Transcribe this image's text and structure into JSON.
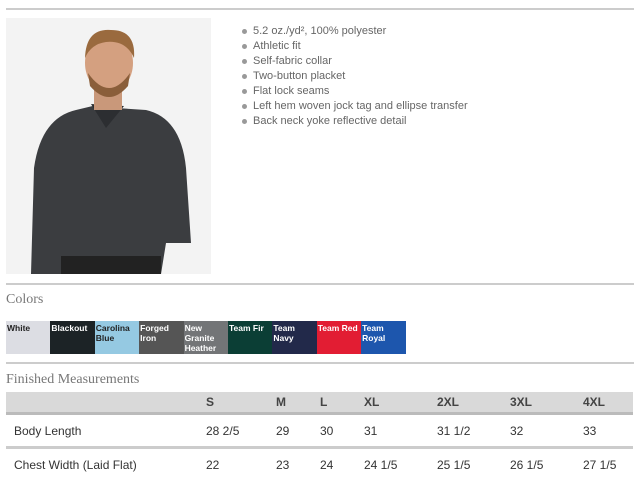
{
  "features": [
    "5.2 oz./yd², 100% polyester",
    "Athletic fit",
    "Self-fabric collar",
    "Two-button placket",
    "Flat lock seams",
    "Left hem woven jock tag and ellipse transfer",
    "Back neck yoke reflective detail"
  ],
  "colors_heading": "Colors",
  "colors": [
    {
      "name": "White",
      "hex": "#dcdde3",
      "text": "#222"
    },
    {
      "name": "Blackout",
      "hex": "#1c2326",
      "text": "#fff"
    },
    {
      "name": "Carolina Blue",
      "hex": "#95c9e2",
      "text": "#222"
    },
    {
      "name": "Forged Iron",
      "hex": "#555555",
      "text": "#fff"
    },
    {
      "name": "New Granite Heather",
      "hex": "#737577",
      "text": "#fff"
    },
    {
      "name": "Team Fir",
      "hex": "#0b3e35",
      "text": "#fff"
    },
    {
      "name": "Team Navy",
      "hex": "#22294a",
      "text": "#fff"
    },
    {
      "name": "Team Red",
      "hex": "#e21d33",
      "text": "#fff"
    },
    {
      "name": "Team Royal",
      "hex": "#1d56ad",
      "text": "#fff"
    }
  ],
  "measurements_heading": "Finished Measurements",
  "table": {
    "headers": [
      "",
      "S",
      "M",
      "L",
      "XL",
      "2XL",
      "3XL",
      "4XL"
    ],
    "rows": [
      [
        "Body Length",
        "28 2/5",
        "29",
        "30",
        "31",
        "31 1/2",
        "32",
        "33"
      ],
      [
        "Chest Width (Laid Flat)",
        "22",
        "23",
        "24",
        "24 1/5",
        "25 1/5",
        "26 1/5",
        "27 1/5"
      ]
    ]
  }
}
